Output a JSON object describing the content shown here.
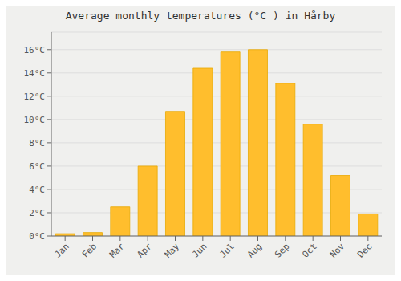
{
  "chart_data": {
    "type": "bar",
    "title": "Average monthly temperatures (°C ) in Hårby",
    "categories": [
      "Jan",
      "Feb",
      "Mar",
      "Apr",
      "May",
      "Jun",
      "Jul",
      "Aug",
      "Sep",
      "Oct",
      "Nov",
      "Dec"
    ],
    "values": [
      0.2,
      0.3,
      2.5,
      6.0,
      10.7,
      14.4,
      15.8,
      16.0,
      13.1,
      9.6,
      5.2,
      1.9
    ],
    "color": "#FFBE2D",
    "ylim": [
      0,
      17.5
    ],
    "yticks": [
      {
        "value": 0,
        "label": "0°C"
      },
      {
        "value": 2,
        "label": "2°C"
      },
      {
        "value": 4,
        "label": "4°C"
      },
      {
        "value": 6,
        "label": "6°C"
      },
      {
        "value": 8,
        "label": "8°C"
      },
      {
        "value": 10,
        "label": "10°C"
      },
      {
        "value": 12,
        "label": "12°C"
      },
      {
        "value": 14,
        "label": "14°C"
      },
      {
        "value": 16,
        "label": "16°C"
      }
    ],
    "grid": true
  }
}
